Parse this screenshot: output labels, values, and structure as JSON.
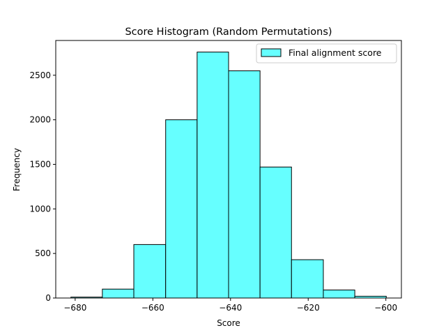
{
  "chart_data": {
    "type": "histogram",
    "title": "Score Histogram (Random Permutations)",
    "xlabel": "Score",
    "ylabel": "Frequency",
    "xlim": [
      -685,
      -596
    ],
    "ylim": [
      0,
      2890
    ],
    "xticks": [
      -680,
      -660,
      -640,
      -620,
      -600
    ],
    "yticks": [
      0,
      500,
      1000,
      1500,
      2000,
      2500
    ],
    "bar_color": "#66ffff",
    "edge_color": "#000000",
    "legend_position": "top-right",
    "series": [
      {
        "name": "Final alignment score",
        "bins": [
          {
            "start": -681.1,
            "end": -673.0,
            "count": 10
          },
          {
            "start": -673.0,
            "end": -664.9,
            "count": 100
          },
          {
            "start": -664.9,
            "end": -656.7,
            "count": 600
          },
          {
            "start": -656.7,
            "end": -648.6,
            "count": 2000
          },
          {
            "start": -648.6,
            "end": -640.5,
            "count": 2760
          },
          {
            "start": -640.5,
            "end": -632.4,
            "count": 2550
          },
          {
            "start": -632.4,
            "end": -624.3,
            "count": 1470
          },
          {
            "start": -624.3,
            "end": -616.1,
            "count": 430
          },
          {
            "start": -616.1,
            "end": -608.0,
            "count": 90
          },
          {
            "start": -608.0,
            "end": -599.9,
            "count": 20
          }
        ]
      }
    ]
  }
}
